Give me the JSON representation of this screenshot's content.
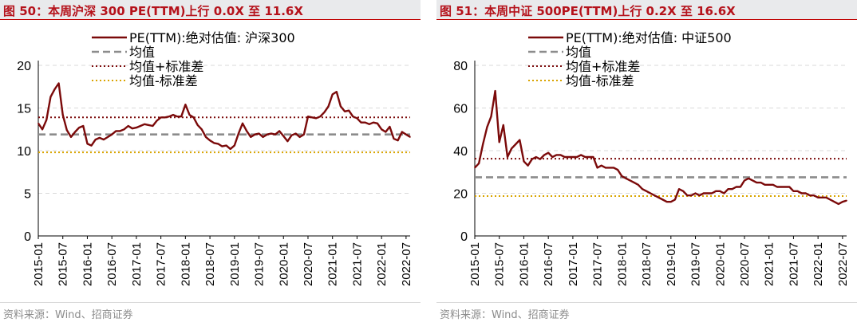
{
  "charts": [
    {
      "title": "图 50：本周沪深 300 PE(TTM)上行 0.0X 至 11.6X",
      "source": "资料来源：Wind、招商证券",
      "legend": [
        "PE(TTM):绝对估值: 沪深300",
        "均值",
        "均值+标准差",
        "均值-标准差"
      ],
      "yticks": [
        "0",
        "5",
        "10",
        "15",
        "20"
      ],
      "xticks": [
        "2015-01",
        "2015-07",
        "2016-01",
        "2016-07",
        "2017-01",
        "2017-07",
        "2018-01",
        "2018-07",
        "2019-01",
        "2019-07",
        "2020-01",
        "2020-07",
        "2021-01",
        "2021-07",
        "2022-01",
        "2022-07"
      ]
    },
    {
      "title": "图 51：本周中证 500PE(TTM)上行 0.2X 至 16.6X",
      "source": "资料来源：Wind、招商证券",
      "legend": [
        "PE(TTM):绝对估值: 中证500",
        "均值",
        "均值+标准差",
        "均值-标准差"
      ],
      "yticks": [
        "0",
        "20",
        "40",
        "60",
        "80"
      ],
      "xticks": [
        "2015-01",
        "2015-07",
        "2016-01",
        "2016-07",
        "2017-01",
        "2017-07",
        "2018-01",
        "2018-07",
        "2019-01",
        "2019-07",
        "2020-01",
        "2020-07",
        "2021-01",
        "2021-07",
        "2022-01",
        "2022-07"
      ]
    }
  ],
  "chart_data": [
    {
      "type": "line",
      "title": "图 50：本周沪深 300 PE(TTM)上行 0.0X 至 11.6X",
      "ylim": [
        0,
        20
      ],
      "grid": true,
      "legend_position": "top",
      "colors": {
        "series": "#7b0a0a",
        "mean": "#8c8c8c",
        "plus_sd": "#7b0a0a",
        "minus_sd": "#d9a400"
      },
      "series": [
        {
          "name": "PE(TTM):绝对估值: 沪深300",
          "x": [
            "2015-01",
            "2015-02",
            "2015-03",
            "2015-04",
            "2015-05",
            "2015-06",
            "2015-07",
            "2015-08",
            "2015-09",
            "2015-10",
            "2015-11",
            "2015-12",
            "2016-01",
            "2016-02",
            "2016-03",
            "2016-04",
            "2016-05",
            "2016-06",
            "2016-07",
            "2016-08",
            "2016-09",
            "2016-10",
            "2016-11",
            "2016-12",
            "2017-01",
            "2017-02",
            "2017-03",
            "2017-04",
            "2017-05",
            "2017-06",
            "2017-07",
            "2017-08",
            "2017-09",
            "2017-10",
            "2017-11",
            "2017-12",
            "2018-01",
            "2018-02",
            "2018-03",
            "2018-04",
            "2018-05",
            "2018-06",
            "2018-07",
            "2018-08",
            "2018-09",
            "2018-10",
            "2018-11",
            "2018-12",
            "2019-01",
            "2019-02",
            "2019-03",
            "2019-04",
            "2019-05",
            "2019-06",
            "2019-07",
            "2019-08",
            "2019-09",
            "2019-10",
            "2019-11",
            "2019-12",
            "2020-01",
            "2020-02",
            "2020-03",
            "2020-04",
            "2020-05",
            "2020-06",
            "2020-07",
            "2020-08",
            "2020-09",
            "2020-10",
            "2020-11",
            "2020-12",
            "2021-01",
            "2021-02",
            "2021-03",
            "2021-04",
            "2021-05",
            "2021-06",
            "2021-07",
            "2021-08",
            "2021-09",
            "2021-10",
            "2021-11",
            "2021-12",
            "2022-01",
            "2022-02",
            "2022-03",
            "2022-04",
            "2022-05",
            "2022-06",
            "2022-07",
            "2022-08"
          ],
          "values": [
            13.2,
            12.5,
            13.6,
            16.3,
            17.2,
            17.9,
            14.2,
            12.4,
            11.6,
            12.2,
            12.7,
            12.9,
            10.8,
            10.6,
            11.3,
            11.5,
            11.3,
            11.6,
            11.9,
            12.3,
            12.3,
            12.5,
            12.9,
            12.6,
            12.7,
            12.9,
            13.1,
            13.0,
            12.9,
            13.5,
            13.9,
            13.9,
            14.0,
            14.2,
            14.0,
            14.0,
            15.4,
            14.2,
            13.9,
            13.0,
            12.5,
            11.6,
            11.2,
            10.9,
            10.8,
            10.5,
            10.6,
            10.2,
            10.6,
            12.0,
            13.2,
            12.3,
            11.6,
            11.9,
            12.0,
            11.6,
            11.9,
            12.0,
            11.9,
            12.3,
            11.7,
            11.1,
            11.8,
            12.0,
            11.6,
            11.9,
            14.0,
            13.9,
            13.8,
            14.0,
            14.5,
            15.2,
            16.6,
            16.9,
            15.2,
            14.6,
            14.7,
            14.0,
            13.8,
            13.3,
            13.3,
            13.1,
            13.3,
            13.2,
            12.5,
            12.2,
            12.8,
            11.4,
            11.2,
            12.2,
            11.9,
            11.6
          ]
        }
      ],
      "reference_lines": [
        {
          "name": "均值",
          "value": 11.9
        },
        {
          "name": "均值+标准差",
          "value": 13.9
        },
        {
          "name": "均值-标准差",
          "value": 9.8
        }
      ]
    },
    {
      "type": "line",
      "title": "图 51：本周中证 500PE(TTM)上行 0.2X 至 16.6X",
      "ylim": [
        0,
        80
      ],
      "grid": true,
      "legend_position": "top",
      "colors": {
        "series": "#7b0a0a",
        "mean": "#8c8c8c",
        "plus_sd": "#7b0a0a",
        "minus_sd": "#d9a400"
      },
      "series": [
        {
          "name": "PE(TTM):绝对估值: 中证500",
          "x": [
            "2015-01",
            "2015-02",
            "2015-03",
            "2015-04",
            "2015-05",
            "2015-06",
            "2015-07",
            "2015-08",
            "2015-09",
            "2015-10",
            "2015-11",
            "2015-12",
            "2016-01",
            "2016-02",
            "2016-03",
            "2016-04",
            "2016-05",
            "2016-06",
            "2016-07",
            "2016-08",
            "2016-09",
            "2016-10",
            "2016-11",
            "2016-12",
            "2017-01",
            "2017-02",
            "2017-03",
            "2017-04",
            "2017-05",
            "2017-06",
            "2017-07",
            "2017-08",
            "2017-09",
            "2017-10",
            "2017-11",
            "2017-12",
            "2018-01",
            "2018-02",
            "2018-03",
            "2018-04",
            "2018-05",
            "2018-06",
            "2018-07",
            "2018-08",
            "2018-09",
            "2018-10",
            "2018-11",
            "2018-12",
            "2019-01",
            "2019-02",
            "2019-03",
            "2019-04",
            "2019-05",
            "2019-06",
            "2019-07",
            "2019-08",
            "2019-09",
            "2019-10",
            "2019-11",
            "2019-12",
            "2020-01",
            "2020-02",
            "2020-03",
            "2020-04",
            "2020-05",
            "2020-06",
            "2020-07",
            "2020-08",
            "2020-09",
            "2020-10",
            "2020-11",
            "2020-12",
            "2021-01",
            "2021-02",
            "2021-03",
            "2021-04",
            "2021-05",
            "2021-06",
            "2021-07",
            "2021-08",
            "2021-09",
            "2021-10",
            "2021-11",
            "2021-12",
            "2022-01",
            "2022-02",
            "2022-03",
            "2022-04",
            "2022-05",
            "2022-06",
            "2022-07",
            "2022-08"
          ],
          "values": [
            32,
            34,
            43,
            51,
            56,
            68,
            44,
            52,
            37,
            41,
            43,
            45,
            35,
            33,
            36,
            37,
            36,
            38,
            39,
            37,
            38,
            38,
            37,
            37,
            37,
            37,
            38,
            37,
            37,
            37,
            32,
            33,
            32,
            32,
            32,
            31,
            28,
            27,
            26,
            25,
            24,
            22,
            21,
            20,
            19,
            18,
            17,
            16,
            16,
            17,
            22,
            21,
            19,
            19,
            20,
            19,
            20,
            20,
            20,
            21,
            21,
            20,
            22,
            22,
            23,
            23,
            26,
            27,
            26,
            25,
            25,
            24,
            24,
            24,
            23,
            23,
            23,
            23,
            21,
            21,
            20,
            20,
            19,
            19,
            18,
            18,
            18,
            17,
            16,
            15,
            16,
            16.6
          ]
        }
      ],
      "reference_lines": [
        {
          "name": "均值",
          "value": 27.5
        },
        {
          "name": "均值+标准差",
          "value": 36.2
        },
        {
          "name": "均值-标准差",
          "value": 18.7
        }
      ]
    }
  ]
}
